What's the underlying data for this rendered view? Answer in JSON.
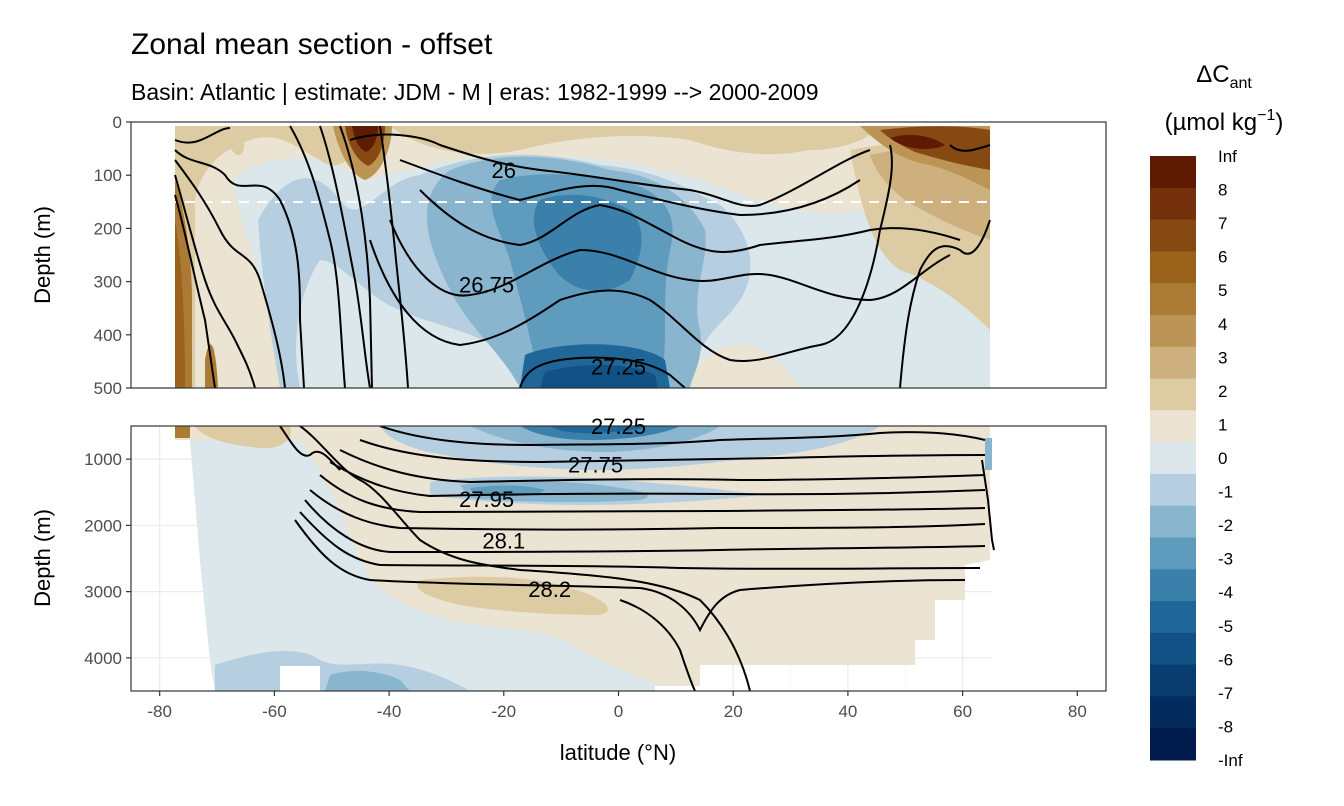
{
  "chart_data": {
    "type": "heatmap",
    "title": "Zonal mean section - offset",
    "subtitle": "Basin: Atlantic | estimate: JDM - M | eras: 1982-1999 --> 2000-2009",
    "xlabel": "latitude (°N)",
    "ylabel": "Depth (m)",
    "xlim": [
      -85,
      85
    ],
    "x_ticks": [
      "-80",
      "-60",
      "-40",
      "-20",
      "0",
      "20",
      "40",
      "60",
      "80"
    ],
    "panels": [
      {
        "name": "upper",
        "ylim": [
          0,
          500
        ],
        "y_ticks": [
          "0",
          "100",
          "200",
          "300",
          "400",
          "500"
        ],
        "reference_depth": 150
      },
      {
        "name": "lower",
        "ylim": [
          500,
          4500
        ],
        "y_ticks": [
          "1000",
          "2000",
          "3000",
          "4000"
        ]
      }
    ],
    "legend": {
      "title": "ΔC",
      "title_sub": "ant",
      "unit": "(µmol kg",
      "unit_sup": "−1",
      "unit_close": ")",
      "labels": [
        "Inf",
        "8",
        "7",
        "6",
        "5",
        "4",
        "3",
        "2",
        "1",
        "0",
        "-1",
        "-2",
        "-3",
        "-4",
        "-5",
        "-6",
        "-7",
        "-8",
        "-Inf"
      ],
      "colors": [
        "#5e1a02",
        "#74300a",
        "#874912",
        "#9a621b",
        "#ab7a34",
        "#bb9456",
        "#cdb07d",
        "#ddcba4",
        "#ebe4d2",
        "#dce7ec",
        "#b5cfe0",
        "#8ab5cf",
        "#5f9bbd",
        "#3a80ab",
        "#1f6799",
        "#125185",
        "#093c6f",
        "#032b5c",
        "#011b4d"
      ]
    },
    "contour_labels": [
      {
        "text": "26",
        "lat": -20,
        "depth": 90
      },
      {
        "text": "26.75",
        "lat": -23,
        "depth": 305
      },
      {
        "text": "27.25",
        "lat": 0,
        "depth": 460
      },
      {
        "text": "27.25",
        "lat": 0,
        "depth": 500
      },
      {
        "text": "27.75",
        "lat": -4,
        "depth": 1080
      },
      {
        "text": "27.95",
        "lat": -23,
        "depth": 1600
      },
      {
        "text": "28.1",
        "lat": -20,
        "depth": 2230
      },
      {
        "text": "28.2",
        "lat": -12,
        "depth": 2960
      }
    ]
  }
}
